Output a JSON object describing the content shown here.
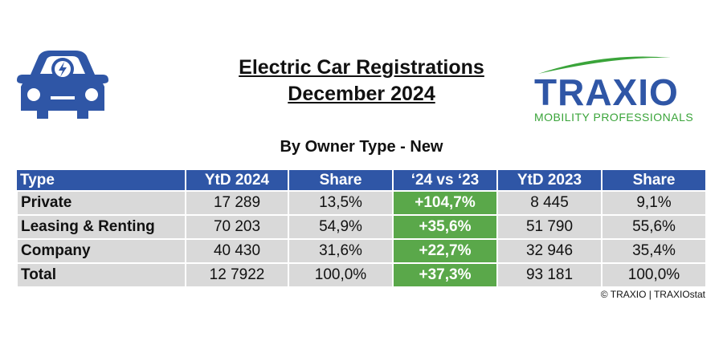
{
  "header": {
    "title": [
      "Electric Car Registrations",
      "December 2024"
    ],
    "subtitle": "By Owner Type - New"
  },
  "logo": {
    "name": "TRAXIO",
    "tagline": "MOBILITY PROFESSIONALS"
  },
  "table": {
    "columns": [
      "Type",
      "YtD 2024",
      "Share",
      "‘24 vs ‘23",
      "YtD 2023",
      "Share"
    ],
    "rows": [
      [
        "Private",
        "17 289",
        "13,5%",
        "+104,7%",
        "8 445",
        "9,1%"
      ],
      [
        "Leasing & Renting",
        "70 203",
        "54,9%",
        "+35,6%",
        "51 790",
        "55,6%"
      ],
      [
        "Company",
        "40 430",
        "31,6%",
        "+22,7%",
        "32 946",
        "35,4%"
      ],
      [
        "Total",
        "12 7922",
        "100,0%",
        "+37,3%",
        "93 181",
        "100,0%"
      ]
    ]
  },
  "footer": "© TRAXIO | TRAXIOstat"
}
